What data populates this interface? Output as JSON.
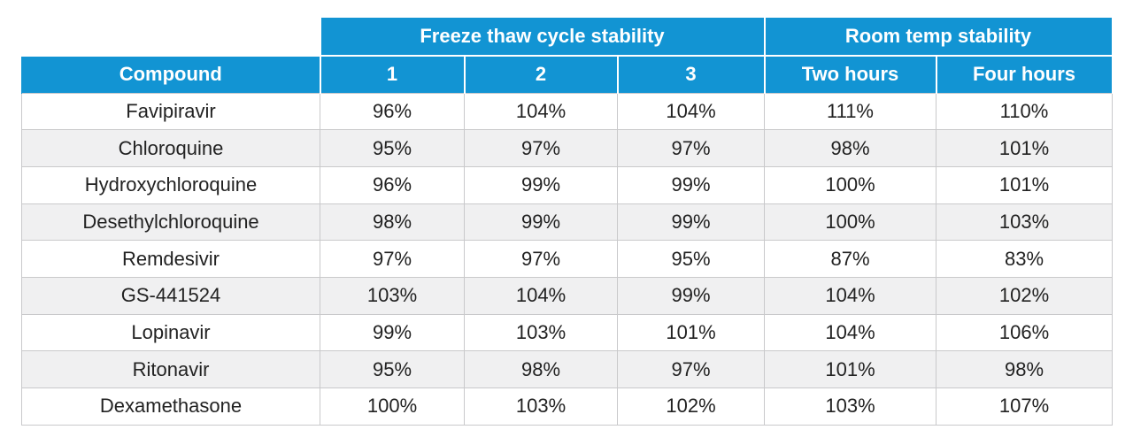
{
  "table": {
    "group_headers": [
      {
        "label": "Freeze thaw cycle stability"
      },
      {
        "label": "Room temp stability"
      }
    ],
    "column_headers": [
      "Compound",
      "1",
      "2",
      "3",
      "Two hours",
      "Four hours"
    ],
    "rows": [
      [
        "Favipiravir",
        "96%",
        "104%",
        "104%",
        "111%",
        "110%"
      ],
      [
        "Chloroquine",
        "95%",
        "97%",
        "97%",
        "98%",
        "101%"
      ],
      [
        "Hydroxychloroquine",
        "96%",
        "99%",
        "99%",
        "100%",
        "101%"
      ],
      [
        "Desethylchloroquine",
        "98%",
        "99%",
        "99%",
        "100%",
        "103%"
      ],
      [
        "Remdesivir",
        "97%",
        "97%",
        "95%",
        "87%",
        "83%"
      ],
      [
        "GS-441524",
        "103%",
        "104%",
        "99%",
        "104%",
        "102%"
      ],
      [
        "Lopinavir",
        "99%",
        "103%",
        "101%",
        "104%",
        "106%"
      ],
      [
        "Ritonavir",
        "95%",
        "98%",
        "97%",
        "101%",
        "98%"
      ],
      [
        "Dexamethasone",
        "100%",
        "103%",
        "102%",
        "103%",
        "107%"
      ]
    ]
  },
  "colors": {
    "header_blue": "#1294d3",
    "header_text": "#ffffff",
    "stripe_gray": "#f0f0f1",
    "grid_line": "#c9c9cb"
  }
}
